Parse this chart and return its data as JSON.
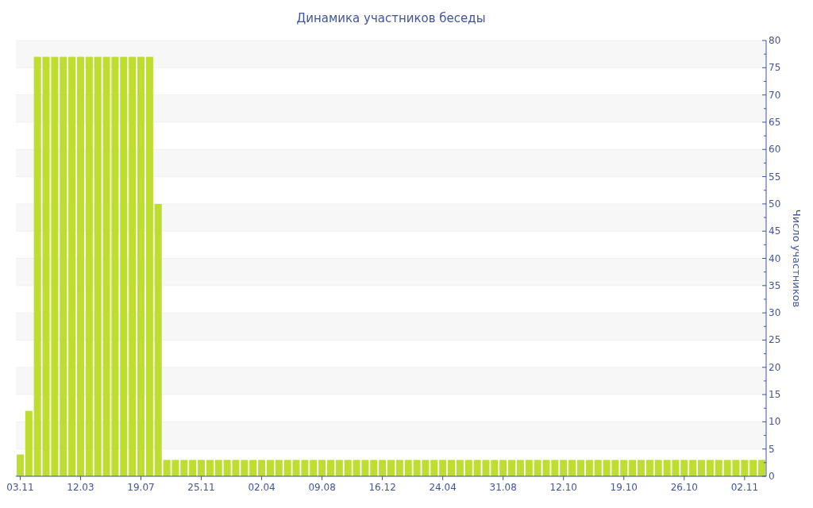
{
  "chart_data": {
    "type": "bar",
    "title": "Динамика участников беседы",
    "ylabel": "Число участников",
    "categories": [
      "03.11",
      null,
      null,
      null,
      null,
      null,
      null,
      "12.03",
      null,
      null,
      null,
      null,
      null,
      null,
      "19.07",
      null,
      null,
      null,
      null,
      null,
      null,
      "25.11",
      null,
      null,
      null,
      null,
      null,
      null,
      "02.04",
      null,
      null,
      null,
      null,
      null,
      null,
      "09.08",
      null,
      null,
      null,
      null,
      null,
      null,
      "16.12",
      null,
      null,
      null,
      null,
      null,
      null,
      "24.04",
      null,
      null,
      null,
      null,
      null,
      null,
      "31.08",
      null,
      null,
      null,
      null,
      null,
      null,
      "12.10",
      null,
      null,
      null,
      null,
      null,
      null,
      "19.10",
      null,
      null,
      null,
      null,
      null,
      null,
      "26.10",
      null,
      null,
      null,
      null,
      null,
      null,
      "02.11",
      null,
      null
    ],
    "values": [
      4,
      12,
      77,
      77,
      77,
      77,
      77,
      77,
      77,
      77,
      77,
      77,
      77,
      77,
      77,
      77,
      50,
      3,
      3,
      3,
      3,
      3,
      3,
      3,
      3,
      3,
      3,
      3,
      3,
      3,
      3,
      3,
      3,
      3,
      3,
      3,
      3,
      3,
      3,
      3,
      3,
      3,
      3,
      3,
      3,
      3,
      3,
      3,
      3,
      3,
      3,
      3,
      3,
      3,
      3,
      3,
      3,
      3,
      3,
      3,
      3,
      3,
      3,
      3,
      3,
      3,
      3,
      3,
      3,
      3,
      3,
      3,
      3,
      3,
      3,
      3,
      3,
      3,
      3,
      3,
      3,
      3,
      3,
      3,
      3,
      3,
      3
    ],
    "color": "#bede2f",
    "ylim": [
      0,
      80
    ],
    "yticks": [
      0,
      {
        "value": 2.5,
        "label": null
      },
      5,
      {
        "value": 7.5,
        "label": null
      },
      10,
      {
        "value": 12.5,
        "label": null
      },
      15,
      {
        "value": 17.5,
        "label": null
      },
      20,
      {
        "value": 22.5,
        "label": null
      },
      25,
      {
        "value": 27.5,
        "label": null
      },
      30,
      {
        "value": 32.5,
        "label": null
      },
      35,
      {
        "value": 37.5,
        "label": null
      },
      40,
      {
        "value": 42.5,
        "label": null
      },
      45,
      {
        "value": 47.5,
        "label": null
      },
      50,
      {
        "value": 52.5,
        "label": null
      },
      55,
      {
        "value": 57.5,
        "label": null
      },
      60,
      {
        "value": 62.5,
        "label": null
      },
      65,
      {
        "value": 67.5,
        "label": null
      },
      70,
      {
        "value": 72.5,
        "label": null
      },
      75,
      {
        "value": 77.5,
        "label": null
      },
      80
    ],
    "grid": "y"
  }
}
